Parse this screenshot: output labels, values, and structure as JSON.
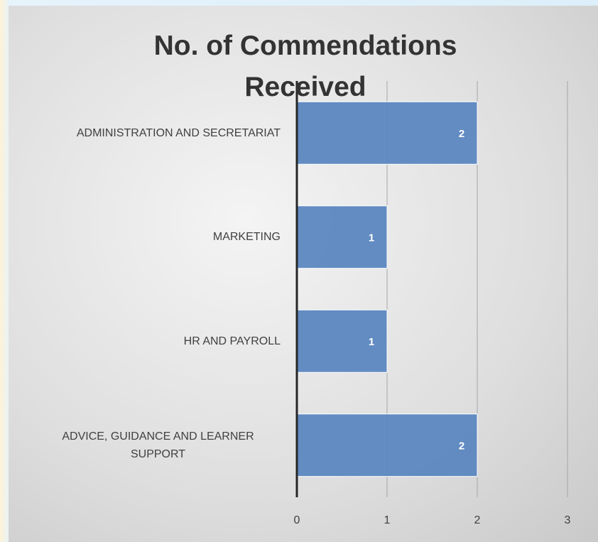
{
  "chart_data": {
    "type": "bar",
    "orientation": "horizontal",
    "title": "No. of Commendations Received",
    "categories": [
      "ADMINISTRATION AND SECRETARIAT",
      "MARKETING",
      "HR AND PAYROLL",
      "ADVICE, GUIDANCE AND LEARNER SUPPORT"
    ],
    "values": [
      2,
      1,
      1,
      2
    ],
    "color": "#5b87c0",
    "xlim": [
      0,
      3
    ],
    "xticks": [
      0,
      1,
      2,
      3
    ],
    "grid": true
  }
}
